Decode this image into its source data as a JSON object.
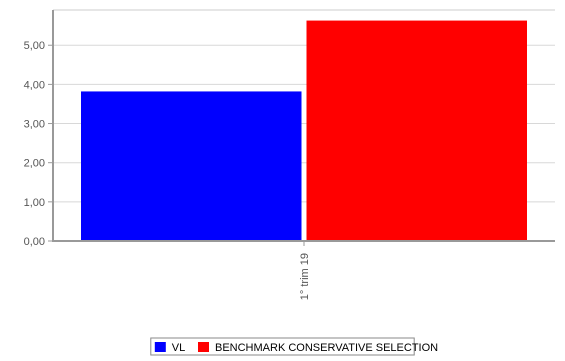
{
  "chart_data": {
    "type": "bar",
    "categories": [
      "1° trim  19"
    ],
    "series": [
      {
        "name": "VL",
        "values": [
          3.82
        ],
        "color": "#0000ff"
      },
      {
        "name": "BENCHMARK CONSERVATIVE SELECTION",
        "values": [
          5.63
        ],
        "color": "#ff0000"
      }
    ],
    "ylim": [
      0,
      5.9
    ],
    "yticks": [
      0,
      1,
      2,
      3,
      4,
      5
    ],
    "ytick_labels": [
      "0,00",
      "1,00",
      "2,00",
      "3,00",
      "4,00",
      "5,00"
    ],
    "grid": true,
    "legend_position": "bottom-center",
    "title": "",
    "xlabel": "",
    "ylabel": ""
  }
}
